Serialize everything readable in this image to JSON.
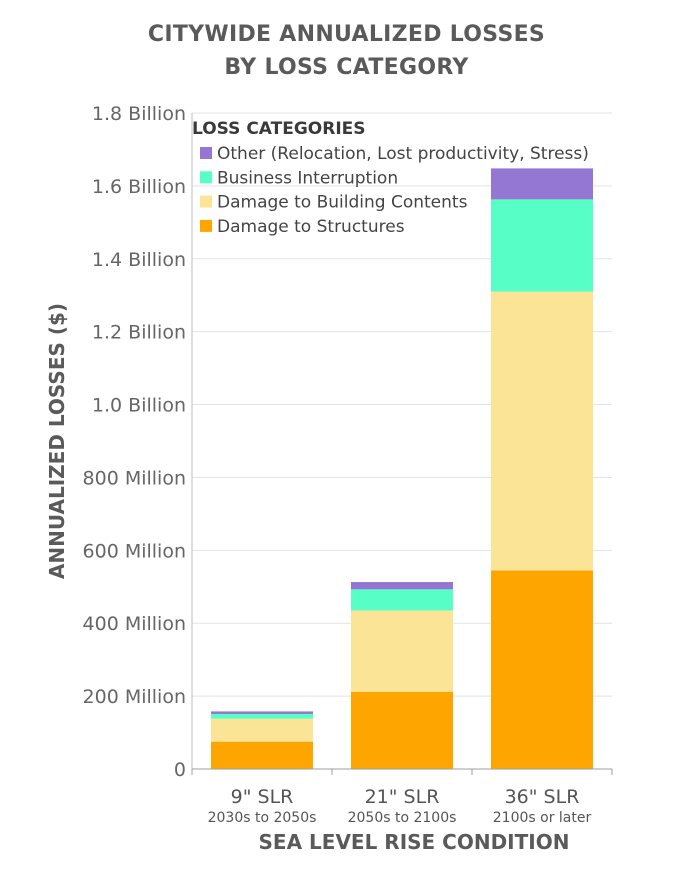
{
  "chart_data": {
    "type": "bar",
    "stacked": true,
    "title_line1": "CITYWIDE ANNUALIZED LOSSES",
    "title_line2": "BY LOSS CATEGORY",
    "xlabel": "SEA LEVEL RISE CONDITION",
    "ylabel": "ANNUALIZED LOSSES ($)",
    "ylim": [
      0,
      1800000000
    ],
    "yticks": [
      {
        "value": 0,
        "label": "0"
      },
      {
        "value": 200000000,
        "label": "200 Million"
      },
      {
        "value": 400000000,
        "label": "400 Million"
      },
      {
        "value": 600000000,
        "label": "600 Million"
      },
      {
        "value": 800000000,
        "label": "800 Million"
      },
      {
        "value": 1000000000,
        "label": "1.0 Billion"
      },
      {
        "value": 1200000000,
        "label": "1.2 Billion"
      },
      {
        "value": 1400000000,
        "label": "1.4 Billion"
      },
      {
        "value": 1600000000,
        "label": "1.6 Billion"
      },
      {
        "value": 1800000000,
        "label": "1.8 Billion"
      }
    ],
    "categories": [
      {
        "label": "9\" SLR",
        "sublabel": "2030s to 2050s"
      },
      {
        "label": "21\" SLR",
        "sublabel": "2050s to 2100s"
      },
      {
        "label": "36\" SLR",
        "sublabel": "2100s or later"
      }
    ],
    "legend_title": "LOSS CATEGORIES",
    "legend_position": "top-left",
    "grid": true,
    "series": [
      {
        "name": "Damage to Structures",
        "color": "#FFA500",
        "values": [
          75000000,
          212000000,
          545000000
        ]
      },
      {
        "name": "Damage to Building Contents",
        "color": "#FCE497",
        "values": [
          63000000,
          223000000,
          765000000
        ]
      },
      {
        "name": "Business Interruption",
        "color": "#57FFC6",
        "values": [
          13000000,
          58000000,
          253000000
        ]
      },
      {
        "name": "Other (Relocation, Lost productivity, Stress)",
        "color": "#9477D2",
        "values": [
          7000000,
          20000000,
          85000000
        ]
      }
    ]
  }
}
